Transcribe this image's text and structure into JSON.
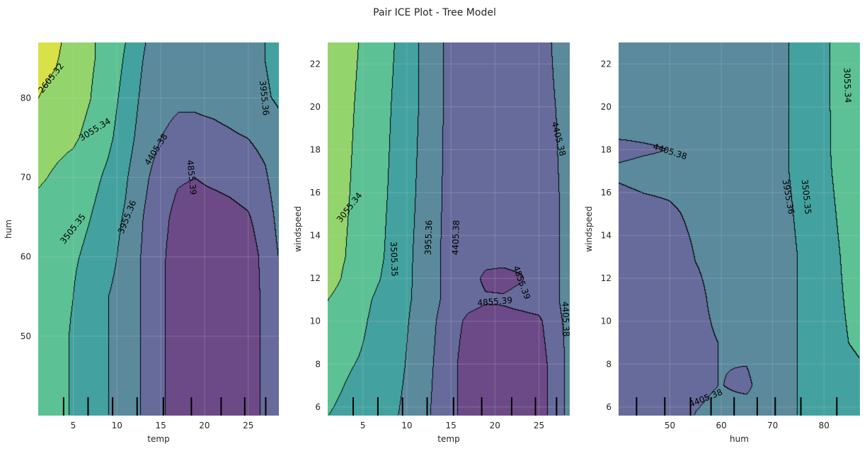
{
  "figure": {
    "title": "Pair ICE Plot - Tree Model"
  },
  "colors": {
    "level_colors": [
      "#d8e248",
      "#93d56c",
      "#5cc295",
      "#43a2a0",
      "#5a8a9c",
      "#676b9b",
      "#6c4a87"
    ],
    "contour_line": "#000000",
    "tick_mark": "#000000",
    "grid": "#cccccc"
  },
  "chart_data": [
    {
      "type": "heatmap",
      "subtype": "filled-contour",
      "id": "temp-hum",
      "xlabel": "temp",
      "ylabel": "hum",
      "xlim": [
        1.0,
        28.5
      ],
      "ylim": [
        40.0,
        87.0
      ],
      "xticks": [
        5,
        10,
        15,
        20,
        25
      ],
      "yticks": [
        50,
        60,
        70,
        80
      ],
      "levels": [
        2605.32,
        3055.34,
        3505.35,
        3955.36,
        4405.38,
        4855.39
      ],
      "contour_labels": [
        {
          "text": "2605.32",
          "x": 2.5,
          "y": 82.5,
          "angle": -52
        },
        {
          "text": "3055.34",
          "x": 7.5,
          "y": 76.0,
          "angle": -32
        },
        {
          "text": "3505.35",
          "x": 5.0,
          "y": 63.5,
          "angle": -52
        },
        {
          "text": "3955.36",
          "x": 11.2,
          "y": 65.0,
          "angle": -68
        },
        {
          "text": "4405.38",
          "x": 14.5,
          "y": 73.5,
          "angle": -58
        },
        {
          "text": "4855.39",
          "x": 18.5,
          "y": 70.0,
          "angle": 84
        },
        {
          "text": "3955.36",
          "x": 26.8,
          "y": 80.0,
          "angle": 84
        }
      ],
      "rug_x": [
        3.9,
        6.7,
        9.5,
        12.3,
        15.3,
        18.5,
        21.9,
        24.6,
        27.0
      ],
      "fill": {
        "x": [
          1.0,
          3.0,
          5.0,
          7.0,
          9.0,
          11.0,
          13.0,
          15.0,
          17.0,
          19.0,
          21.0,
          23.0,
          25.0,
          27.0,
          28.5
        ],
        "y": [
          40.0,
          45.0,
          50.0,
          55.0,
          60.0,
          65.0,
          70.0,
          75.0,
          80.0,
          85.0,
          87.0
        ],
        "z": [
          [
            3300,
            3350,
            3550,
            3800,
            3950,
            4150,
            4450,
            4750,
            5150,
            5250,
            5250,
            5250,
            5250,
            4700,
            4400
          ],
          [
            3300,
            3350,
            3550,
            3800,
            3950,
            4150,
            4450,
            4750,
            5150,
            5250,
            5250,
            5250,
            5250,
            4700,
            4400
          ],
          [
            3300,
            3350,
            3550,
            3800,
            3950,
            4150,
            4450,
            4750,
            5150,
            5250,
            5250,
            5250,
            5200,
            4700,
            4400
          ],
          [
            3300,
            3350,
            3500,
            3750,
            3950,
            4150,
            4450,
            4750,
            5150,
            5250,
            5250,
            5250,
            5200,
            4700,
            4400
          ],
          [
            3300,
            3350,
            3450,
            3600,
            3800,
            4100,
            4450,
            4750,
            5100,
            5200,
            5200,
            5200,
            5100,
            4700,
            4400
          ],
          [
            3200,
            3250,
            3350,
            3500,
            3750,
            4000,
            4400,
            4700,
            5000,
            5100,
            5100,
            5000,
            4900,
            4600,
            4300
          ],
          [
            3000,
            3100,
            3200,
            3350,
            3600,
            3900,
            4300,
            4600,
            4800,
            4850,
            4750,
            4700,
            4600,
            4450,
            4200
          ],
          [
            2900,
            2950,
            3000,
            3150,
            3400,
            3750,
            4150,
            4400,
            4500,
            4500,
            4500,
            4450,
            4400,
            4300,
            4100
          ],
          [
            2600,
            2750,
            2900,
            3050,
            3300,
            3650,
            4050,
            4300,
            4350,
            4350,
            4300,
            4250,
            4150,
            4000,
            3900
          ],
          [
            2450,
            2550,
            2850,
            3000,
            3200,
            3550,
            3950,
            4250,
            4300,
            4300,
            4250,
            4200,
            4100,
            3950,
            3850
          ],
          [
            2450,
            2500,
            2800,
            3000,
            3200,
            3500,
            3900,
            4250,
            4300,
            4300,
            4250,
            4200,
            4100,
            3950,
            3850
          ]
        ]
      }
    },
    {
      "type": "heatmap",
      "subtype": "filled-contour",
      "id": "temp-windspeed",
      "xlabel": "temp",
      "ylabel": "windspeed",
      "xlim": [
        1.0,
        28.5
      ],
      "ylim": [
        5.6,
        23.0
      ],
      "xticks": [
        5,
        10,
        15,
        20,
        25
      ],
      "yticks": [
        6,
        8,
        10,
        12,
        14,
        16,
        18,
        20,
        22
      ],
      "levels": [
        3055.34,
        3505.35,
        3955.36,
        4405.38,
        4855.39
      ],
      "contour_labels": [
        {
          "text": "3055.34",
          "x": 3.5,
          "y": 15.3,
          "angle": -52
        },
        {
          "text": "3505.35",
          "x": 8.5,
          "y": 12.9,
          "angle": 88
        },
        {
          "text": "3955.36",
          "x": 12.5,
          "y": 13.9,
          "angle": -88
        },
        {
          "text": "4405.38",
          "x": 15.6,
          "y": 13.9,
          "angle": -88
        },
        {
          "text": "4855.39",
          "x": 23.0,
          "y": 11.8,
          "angle": 70
        },
        {
          "text": "4855.39",
          "x": 20.0,
          "y": 10.9,
          "angle": -5
        },
        {
          "text": "4405.38",
          "x": 27.2,
          "y": 18.5,
          "angle": 76
        },
        {
          "text": "4405.38",
          "x": 28.0,
          "y": 10.1,
          "angle": 88
        }
      ],
      "rug_x": [
        3.9,
        6.7,
        9.5,
        12.3,
        15.3,
        18.5,
        21.9,
        24.6,
        27.0
      ],
      "fill": {
        "x": [
          1.0,
          3.0,
          5.0,
          7.0,
          9.0,
          11.0,
          13.0,
          15.0,
          17.0,
          19.0,
          21.0,
          23.0,
          25.0,
          27.0,
          28.5
        ],
        "y": [
          5.6,
          8.0,
          10.0,
          11.0,
          12.0,
          13.0,
          16.0,
          20.0,
          23.0
        ],
        "z": [
          [
            3500,
            3600,
            3700,
            3850,
            3950,
            4150,
            4450,
            4700,
            5100,
            5200,
            5200,
            5200,
            5100,
            4600,
            4300
          ],
          [
            3300,
            3450,
            3550,
            3700,
            3850,
            4100,
            4400,
            4700,
            5100,
            5200,
            5200,
            5200,
            5100,
            4600,
            4300
          ],
          [
            3100,
            3250,
            3450,
            3650,
            3800,
            4050,
            4350,
            4650,
            4950,
            5050,
            5000,
            5000,
            4950,
            4500,
            4300
          ],
          [
            3050,
            3200,
            3400,
            3600,
            3800,
            4000,
            4300,
            4550,
            4700,
            4800,
            4800,
            4700,
            4600,
            4450,
            4250
          ],
          [
            2900,
            3100,
            3300,
            3500,
            3750,
            4000,
            4300,
            4550,
            4650,
            4950,
            5000,
            4900,
            4600,
            4450,
            4250
          ],
          [
            2900,
            3050,
            3250,
            3450,
            3700,
            4000,
            4300,
            4550,
            4650,
            4700,
            4700,
            4650,
            4600,
            4450,
            4250
          ],
          [
            2850,
            3000,
            3200,
            3400,
            3650,
            3950,
            4250,
            4550,
            4650,
            4650,
            4650,
            4650,
            4600,
            4450,
            4250
          ],
          [
            2800,
            2950,
            3150,
            3350,
            3600,
            3900,
            4200,
            4550,
            4650,
            4650,
            4650,
            4650,
            4550,
            4400,
            4200
          ],
          [
            2800,
            2900,
            3100,
            3300,
            3550,
            3900,
            4200,
            4550,
            4650,
            4650,
            4650,
            4650,
            4550,
            4350,
            4150
          ]
        ]
      }
    },
    {
      "type": "heatmap",
      "subtype": "filled-contour",
      "id": "hum-windspeed",
      "xlabel": "hum",
      "ylabel": "windspeed",
      "xlim": [
        40.0,
        87.0
      ],
      "ylim": [
        5.6,
        23.0
      ],
      "xticks": [
        50,
        60,
        70,
        80
      ],
      "yticks": [
        6,
        8,
        10,
        12,
        14,
        16,
        18,
        20,
        22
      ],
      "levels": [
        3055.34,
        3505.35,
        3955.36,
        4405.38
      ],
      "contour_labels": [
        {
          "text": "4405.38",
          "x": 50.0,
          "y": 17.9,
          "angle": 18
        },
        {
          "text": "3955.36",
          "x": 73.0,
          "y": 15.8,
          "angle": 80
        },
        {
          "text": "3505.35",
          "x": 76.5,
          "y": 15.8,
          "angle": 84
        },
        {
          "text": "3055.34",
          "x": 84.5,
          "y": 21.0,
          "angle": 88
        },
        {
          "text": "4405.38",
          "x": 57.0,
          "y": 6.4,
          "angle": -22
        }
      ],
      "rug_x": [
        43.5,
        49.0,
        54.0,
        58.0,
        62.5,
        67.0,
        70.5,
        75.5,
        82.5
      ],
      "fill": {
        "x": [
          40.0,
          45.0,
          50.0,
          55.0,
          60.0,
          65.0,
          70.0,
          72.5,
          75.0,
          80.0,
          85.0,
          87.0
        ],
        "y": [
          5.6,
          7.0,
          9.0,
          11.0,
          13.0,
          15.0,
          17.0,
          18.0,
          19.0,
          21.0,
          23.0
        ],
        "z": [
          [
            4650,
            4650,
            4550,
            4400,
            4350,
            4300,
            4250,
            4150,
            3950,
            3800,
            3700,
            3650
          ],
          [
            4650,
            4650,
            4600,
            4450,
            4400,
            4450,
            4250,
            4150,
            3950,
            3750,
            3650,
            3600
          ],
          [
            4650,
            4650,
            4600,
            4450,
            4400,
            4350,
            4250,
            4150,
            3950,
            3700,
            3500,
            3450
          ],
          [
            4650,
            4650,
            4600,
            4450,
            4350,
            4300,
            4250,
            4150,
            3950,
            3700,
            3450,
            3400
          ],
          [
            4650,
            4650,
            4550,
            4400,
            4350,
            4300,
            4250,
            4100,
            3950,
            3700,
            3400,
            3350
          ],
          [
            4550,
            4500,
            4450,
            4350,
            4300,
            4250,
            4200,
            4050,
            3900,
            3650,
            3350,
            3300
          ],
          [
            4350,
            4300,
            4300,
            4300,
            4250,
            4200,
            4150,
            4000,
            3850,
            3600,
            3300,
            3250
          ],
          [
            4500,
            4450,
            4400,
            4300,
            4250,
            4200,
            4150,
            4000,
            3850,
            3600,
            3250,
            3200
          ],
          [
            4300,
            4300,
            4300,
            4250,
            4250,
            4200,
            4150,
            4000,
            3850,
            3600,
            3250,
            3150
          ],
          [
            4300,
            4300,
            4300,
            4250,
            4250,
            4200,
            4150,
            4000,
            3850,
            3600,
            3200,
            3100
          ],
          [
            4300,
            4300,
            4300,
            4250,
            4250,
            4200,
            4150,
            4000,
            3850,
            3600,
            3200,
            3050
          ]
        ]
      }
    }
  ]
}
